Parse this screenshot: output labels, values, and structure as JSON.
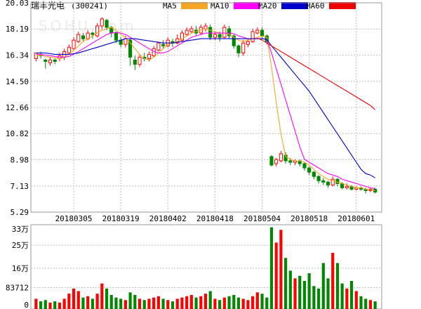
{
  "title": "瑞丰光电",
  "code": "(300241)",
  "watermark": "SOHU.com",
  "legend": [
    {
      "label": "MA5",
      "color": "#f5a623"
    },
    {
      "label": "MA10",
      "color": "#ff00ff"
    },
    {
      "label": "MA20",
      "color": "#0000cc"
    },
    {
      "label": "MA60",
      "color": "#ee0000"
    }
  ],
  "colors": {
    "up": "#ff0000",
    "down": "#008800",
    "grid": "#c0c0c0",
    "frame": "#999999"
  },
  "chart_data": [
    {
      "type": "candlestick",
      "y_ticks": [
        "20.03",
        "18.19",
        "16.34",
        "14.50",
        "12.66",
        "10.82",
        "8.98",
        "7.13",
        "5.29"
      ],
      "ylim": [
        5.29,
        20.03
      ],
      "x_ticks": [
        {
          "label": "20180305",
          "index": 8
        },
        {
          "label": "20180319",
          "index": 18
        },
        {
          "label": "20180402",
          "index": 28
        },
        {
          "label": "20180418",
          "index": 38
        },
        {
          "label": "20180504",
          "index": 48
        },
        {
          "label": "20180518",
          "index": 58
        },
        {
          "label": "20180601",
          "index": 68
        }
      ],
      "candles": [
        [
          16.1,
          16.5,
          16.3,
          15.9
        ],
        [
          16.4,
          16.3,
          16.6,
          16.1
        ],
        [
          16.0,
          15.9,
          16.1,
          15.4
        ],
        [
          15.8,
          16.0,
          16.2,
          15.6
        ],
        [
          16.0,
          15.9,
          16.1,
          15.7
        ],
        [
          16.1,
          16.3,
          16.5,
          15.9
        ],
        [
          16.2,
          16.6,
          16.8,
          16.0
        ],
        [
          16.5,
          16.9,
          17.1,
          16.4
        ],
        [
          16.8,
          17.4,
          17.6,
          16.7
        ],
        [
          17.3,
          17.8,
          18.0,
          17.2
        ],
        [
          17.7,
          17.5,
          17.9,
          17.3
        ],
        [
          17.5,
          17.9,
          18.1,
          17.4
        ],
        [
          17.9,
          17.8,
          18.0,
          17.5
        ],
        [
          17.7,
          18.4,
          18.6,
          17.6
        ],
        [
          18.4,
          18.9,
          19.0,
          18.2
        ],
        [
          18.8,
          18.3,
          18.9,
          18.1
        ],
        [
          18.3,
          17.9,
          18.4,
          17.6
        ],
        [
          17.9,
          17.4,
          18.0,
          17.2
        ],
        [
          17.4,
          17.1,
          17.6,
          16.9
        ],
        [
          17.1,
          17.5,
          17.7,
          16.9
        ],
        [
          17.4,
          16.2,
          17.5,
          15.6
        ],
        [
          16.0,
          15.7,
          16.3,
          15.3
        ],
        [
          15.7,
          16.2,
          16.4,
          15.5
        ],
        [
          16.2,
          16.1,
          16.5,
          15.9
        ],
        [
          16.1,
          16.4,
          16.6,
          15.9
        ],
        [
          16.3,
          16.8,
          17.0,
          16.2
        ],
        [
          16.7,
          17.2,
          17.3,
          16.6
        ],
        [
          17.1,
          17.0,
          17.4,
          16.8
        ],
        [
          17.0,
          17.4,
          17.6,
          16.9
        ],
        [
          17.3,
          17.2,
          17.5,
          16.9
        ],
        [
          17.2,
          17.5,
          17.8,
          17.1
        ],
        [
          17.4,
          17.9,
          18.1,
          17.3
        ],
        [
          17.8,
          18.1,
          18.3,
          17.7
        ],
        [
          18.0,
          18.2,
          18.4,
          17.9
        ],
        [
          18.1,
          17.9,
          18.4,
          17.7
        ],
        [
          17.9,
          18.3,
          18.5,
          17.8
        ],
        [
          18.2,
          18.4,
          18.6,
          18.0
        ],
        [
          18.3,
          17.6,
          18.5,
          17.4
        ],
        [
          17.6,
          17.8,
          18.0,
          17.4
        ],
        [
          17.8,
          17.6,
          18.0,
          17.3
        ],
        [
          17.6,
          18.3,
          18.5,
          17.5
        ],
        [
          18.2,
          17.7,
          18.4,
          17.5
        ],
        [
          17.7,
          17.0,
          17.8,
          16.8
        ],
        [
          17.0,
          16.5,
          17.1,
          16.2
        ],
        [
          16.5,
          17.2,
          17.4,
          16.3
        ],
        [
          17.1,
          17.3,
          17.5,
          16.9
        ],
        [
          17.3,
          18.0,
          18.2,
          17.2
        ],
        [
          17.9,
          18.1,
          18.3,
          17.8
        ],
        [
          18.1,
          17.7,
          18.3,
          17.5
        ],
        [
          17.7,
          17.3,
          17.8,
          17.1
        ],
        [
          9.2,
          8.6,
          9.3,
          8.5
        ],
        [
          8.7,
          9.0,
          9.1,
          8.5
        ],
        [
          8.9,
          9.4,
          9.6,
          8.8
        ],
        [
          9.3,
          8.9,
          9.5,
          8.7
        ],
        [
          8.9,
          8.8,
          9.1,
          8.6
        ],
        [
          8.8,
          8.9,
          9.0,
          8.6
        ],
        [
          8.9,
          8.7,
          9.0,
          8.5
        ],
        [
          8.7,
          8.4,
          8.8,
          8.2
        ],
        [
          8.4,
          8.1,
          8.5,
          7.9
        ],
        [
          8.1,
          7.8,
          8.2,
          7.6
        ],
        [
          7.8,
          7.5,
          7.9,
          7.3
        ],
        [
          7.5,
          7.4,
          7.7,
          7.2
        ],
        [
          7.4,
          7.2,
          7.5,
          7.0
        ],
        [
          7.2,
          7.6,
          7.8,
          7.1
        ],
        [
          7.6,
          7.3,
          7.7,
          7.1
        ],
        [
          7.3,
          7.0,
          7.4,
          6.9
        ],
        [
          7.0,
          7.1,
          7.3,
          6.9
        ],
        [
          7.1,
          6.9,
          7.2,
          6.8
        ],
        [
          6.9,
          7.0,
          7.1,
          6.8
        ],
        [
          7.0,
          6.9,
          7.1,
          6.8
        ],
        [
          6.9,
          6.8,
          7.0,
          6.6
        ],
        [
          6.8,
          6.9,
          7.0,
          6.7
        ],
        [
          6.9,
          6.7,
          7.0,
          6.6
        ]
      ],
      "ma": [
        {
          "name": "MA5",
          "color": "#f5a623",
          "values": [
            16.3,
            16.35,
            16.25,
            16.2,
            16.15,
            16.1,
            16.2,
            16.4,
            16.7,
            17.0,
            17.3,
            17.5,
            17.7,
            17.9,
            18.1,
            18.2,
            18.3,
            18.1,
            17.8,
            17.6,
            17.2,
            16.8,
            16.4,
            16.1,
            16.0,
            16.2,
            16.5,
            16.8,
            17.1,
            17.2,
            17.3,
            17.5,
            17.7,
            17.9,
            18.0,
            18.1,
            18.2,
            18.1,
            18.0,
            17.9,
            17.9,
            17.8,
            17.6,
            17.4,
            17.3,
            17.4,
            17.5,
            17.6,
            17.7,
            17.6,
            15.5,
            13.0,
            10.8,
            9.2,
            9.0,
            8.9,
            8.9,
            8.8,
            8.6,
            8.3,
            8.0,
            7.8,
            7.6,
            7.5,
            7.4,
            7.3,
            7.2,
            7.1,
            7.0,
            7.0,
            6.9,
            6.85,
            6.8
          ]
        },
        {
          "name": "MA10",
          "color": "#ff00ff",
          "values": [
            16.4,
            16.4,
            16.35,
            16.3,
            16.25,
            16.2,
            16.2,
            16.25,
            16.4,
            16.6,
            16.8,
            17.0,
            17.2,
            17.4,
            17.6,
            17.8,
            17.9,
            17.95,
            17.9,
            17.8,
            17.6,
            17.4,
            17.2,
            17.0,
            16.8,
            16.6,
            16.5,
            16.5,
            16.6,
            16.8,
            17.0,
            17.2,
            17.4,
            17.6,
            17.7,
            17.8,
            17.9,
            17.9,
            17.9,
            17.9,
            17.9,
            17.9,
            17.85,
            17.7,
            17.6,
            17.5,
            17.5,
            17.5,
            17.5,
            17.45,
            16.5,
            15.4,
            14.3,
            13.2,
            12.1,
            11.0,
            9.9,
            9.0,
            8.8,
            8.6,
            8.4,
            8.2,
            8.0,
            7.9,
            7.8,
            7.6,
            7.5,
            7.4,
            7.3,
            7.2,
            7.1,
            7.0,
            6.95
          ]
        },
        {
          "name": "MA20",
          "color": "#0000cc",
          "values": [
            16.5,
            16.5,
            16.5,
            16.45,
            16.4,
            16.4,
            16.4,
            16.4,
            16.45,
            16.5,
            16.6,
            16.7,
            16.8,
            16.9,
            17.0,
            17.1,
            17.2,
            17.3,
            17.4,
            17.5,
            17.5,
            17.5,
            17.45,
            17.4,
            17.35,
            17.3,
            17.25,
            17.2,
            17.2,
            17.2,
            17.25,
            17.3,
            17.35,
            17.4,
            17.45,
            17.5,
            17.5,
            17.5,
            17.5,
            17.5,
            17.5,
            17.5,
            17.5,
            17.5,
            17.5,
            17.5,
            17.5,
            17.5,
            17.5,
            17.45,
            17.0,
            16.6,
            16.2,
            15.8,
            15.4,
            15.0,
            14.6,
            14.2,
            13.8,
            13.3,
            12.8,
            12.3,
            11.8,
            11.3,
            10.8,
            10.3,
            9.8,
            9.3,
            8.8,
            8.3,
            8.0,
            7.9,
            7.7
          ]
        },
        {
          "name": "MA60",
          "color": "#ee0000",
          "values": [
            null,
            null,
            null,
            null,
            null,
            null,
            null,
            null,
            null,
            null,
            null,
            null,
            null,
            null,
            null,
            null,
            null,
            null,
            null,
            null,
            null,
            null,
            null,
            null,
            null,
            null,
            null,
            null,
            null,
            null,
            null,
            null,
            null,
            null,
            null,
            null,
            null,
            null,
            null,
            null,
            null,
            null,
            null,
            null,
            null,
            null,
            null,
            17.55,
            17.4,
            17.2,
            17.0,
            16.8,
            16.6,
            16.4,
            16.2,
            16.0,
            15.8,
            15.6,
            15.4,
            15.2,
            15.0,
            14.8,
            14.6,
            14.4,
            14.2,
            14.0,
            13.8,
            13.6,
            13.4,
            13.2,
            13.0,
            12.8,
            12.5
          ]
        }
      ]
    },
    {
      "type": "bar",
      "y_ticks": [
        "33万",
        "25万",
        "16万",
        "83712",
        "0"
      ],
      "y_tick_values": [
        330000,
        250000,
        160000,
        83712,
        0
      ],
      "ylim": [
        0,
        330000
      ],
      "volume": [
        40000,
        30000,
        35000,
        25000,
        30000,
        25000,
        40000,
        60000,
        80000,
        70000,
        45000,
        50000,
        40000,
        60000,
        100000,
        80000,
        55000,
        45000,
        40000,
        35000,
        65000,
        55000,
        40000,
        35000,
        40000,
        45000,
        50000,
        40000,
        35000,
        30000,
        40000,
        45000,
        50000,
        55000,
        45000,
        50000,
        60000,
        70000,
        40000,
        35000,
        45000,
        50000,
        55000,
        45000,
        40000,
        35000,
        50000,
        65000,
        60000,
        45000,
        320000,
        260000,
        310000,
        200000,
        150000,
        120000,
        130000,
        110000,
        140000,
        90000,
        80000,
        180000,
        120000,
        220000,
        180000,
        100000,
        80000,
        110000,
        70000,
        50000,
        40000,
        35000,
        30000
      ]
    }
  ]
}
